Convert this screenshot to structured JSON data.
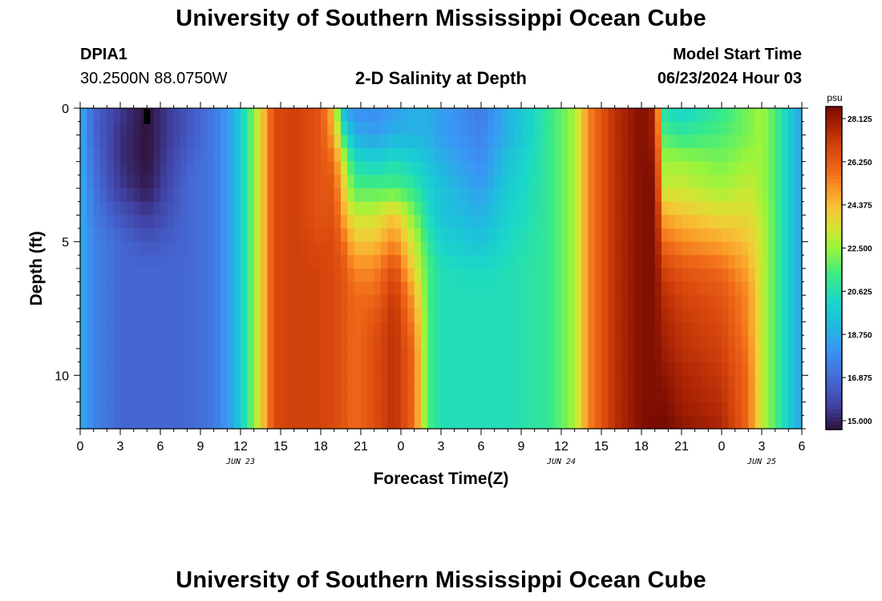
{
  "page": {
    "title": "University of Southern Mississippi Ocean Cube",
    "footer_title": "University of Southern Mississippi Ocean Cube"
  },
  "station": {
    "id": "DPIA1",
    "coords": "30.2500N  88.0750W"
  },
  "model": {
    "label": "Model Start Time",
    "start": "06/23/2024 Hour 03"
  },
  "chart_data": {
    "type": "heatmap",
    "title": "2-D Salinity at Depth",
    "xlabel": "Forecast Time(Z)",
    "ylabel": "Depth (ft)",
    "x_range_hours": [
      0,
      54
    ],
    "x_ticks": [
      0,
      3,
      6,
      9,
      12,
      15,
      18,
      21,
      24,
      27,
      30,
      33,
      36,
      39,
      42,
      45,
      48,
      51,
      54
    ],
    "x_tick_labels": [
      "0",
      "3",
      "6",
      "9",
      "12",
      "15",
      "18",
      "21",
      "0",
      "3",
      "6",
      "9",
      "12",
      "15",
      "18",
      "21",
      "0",
      "3",
      "6"
    ],
    "date_labels": [
      {
        "text": "JUN 23",
        "hour": 12
      },
      {
        "text": "JUN 24",
        "hour": 36
      },
      {
        "text": "JUN 25",
        "hour": 51
      }
    ],
    "y_range_ft": [
      0,
      12
    ],
    "y_ticks": [
      0,
      5,
      10
    ],
    "y_tick_labels": [
      "0",
      "5",
      "10"
    ],
    "colorbar": {
      "unit": "psu",
      "min": 15.0,
      "max": 28.125,
      "tick_labels": [
        "28.125",
        "26.250",
        "24.375",
        "22.500",
        "20.625",
        "18.750",
        "16.875",
        "15.000"
      ]
    },
    "depth_profile_ft": [
      0,
      1,
      2,
      3,
      4,
      5,
      6,
      7,
      8,
      9,
      10,
      11,
      12
    ],
    "salinity_keyframes": [
      {
        "hour": 0,
        "psu": [
          19.0,
          19.0,
          19.0,
          19.0,
          19.0,
          19.0,
          19.0,
          19.0,
          19.0,
          19.0,
          19.0,
          19.0,
          19.0
        ]
      },
      {
        "hour": 1,
        "psu": [
          17.0,
          17.0,
          17.2,
          17.4,
          17.6,
          17.8,
          17.8,
          17.8,
          17.8,
          17.8,
          17.8,
          17.8,
          17.8
        ]
      },
      {
        "hour": 3,
        "psu": [
          15.8,
          15.6,
          15.6,
          15.8,
          16.5,
          17.0,
          17.0,
          17.0,
          17.0,
          17.0,
          17.0,
          17.0,
          17.0
        ]
      },
      {
        "hour": 5,
        "psu": [
          15.0,
          15.0,
          15.0,
          15.2,
          15.8,
          16.5,
          17.0,
          17.0,
          17.0,
          17.0,
          17.0,
          17.0,
          17.0
        ]
      },
      {
        "hour": 8,
        "psu": [
          16.5,
          16.5,
          16.8,
          17.0,
          17.0,
          17.0,
          17.0,
          17.0,
          17.0,
          17.0,
          17.0,
          17.0,
          17.0
        ]
      },
      {
        "hour": 10,
        "psu": [
          17.5,
          17.5,
          17.5,
          17.5,
          17.5,
          17.5,
          17.5,
          17.5,
          17.5,
          17.5,
          17.5,
          17.5,
          17.5
        ]
      },
      {
        "hour": 11.5,
        "psu": [
          18.8,
          18.8,
          18.8,
          18.8,
          18.8,
          18.8,
          18.8,
          18.8,
          18.8,
          18.8,
          18.8,
          18.8,
          18.8
        ]
      },
      {
        "hour": 12.5,
        "psu": [
          21.0,
          21.0,
          21.0,
          21.0,
          21.0,
          21.0,
          21.0,
          21.0,
          21.0,
          21.0,
          21.0,
          21.0,
          21.0
        ]
      },
      {
        "hour": 13.5,
        "psu": [
          23.5,
          23.5,
          23.5,
          23.5,
          23.5,
          23.5,
          23.5,
          23.5,
          23.5,
          23.5,
          23.5,
          23.5,
          23.5
        ]
      },
      {
        "hour": 14.5,
        "psu": [
          26.3,
          26.3,
          26.3,
          26.3,
          26.3,
          26.3,
          26.3,
          26.3,
          26.3,
          26.3,
          26.3,
          26.3,
          26.3
        ]
      },
      {
        "hour": 16,
        "psu": [
          26.6,
          26.6,
          26.6,
          26.6,
          26.6,
          26.6,
          26.6,
          26.6,
          26.6,
          26.6,
          26.6,
          26.6,
          26.6
        ]
      },
      {
        "hour": 18,
        "psu": [
          26.0,
          26.0,
          26.0,
          26.0,
          26.0,
          26.3,
          26.5,
          26.5,
          26.5,
          26.5,
          26.5,
          26.5,
          26.5
        ]
      },
      {
        "hour": 19,
        "psu": [
          24.0,
          24.5,
          25.5,
          26.0,
          26.2,
          26.3,
          26.3,
          26.3,
          26.3,
          26.3,
          26.3,
          26.3,
          26.3
        ]
      },
      {
        "hour": 19.7,
        "psu": [
          19.0,
          21.0,
          23.0,
          23.8,
          24.5,
          25.5,
          26.0,
          26.0,
          26.0,
          26.0,
          26.0,
          26.0,
          26.0
        ]
      },
      {
        "hour": 20.5,
        "psu": [
          18.0,
          19.0,
          20.5,
          21.5,
          23.0,
          24.0,
          25.0,
          25.5,
          25.5,
          25.5,
          25.5,
          25.5,
          25.5
        ]
      },
      {
        "hour": 22,
        "psu": [
          18.0,
          18.5,
          20.0,
          21.5,
          23.0,
          24.0,
          25.0,
          25.5,
          26.0,
          26.2,
          26.2,
          26.2,
          26.2
        ]
      },
      {
        "hour": 23.5,
        "psu": [
          18.5,
          19.0,
          20.5,
          21.5,
          24.0,
          25.0,
          26.3,
          26.8,
          27.0,
          27.0,
          27.0,
          27.0,
          27.0
        ]
      },
      {
        "hour": 25,
        "psu": [
          19.0,
          19.0,
          20.0,
          21.0,
          22.0,
          23.0,
          23.5,
          24.5,
          25.0,
          25.5,
          25.5,
          25.5,
          25.5
        ]
      },
      {
        "hour": 26,
        "psu": [
          19.0,
          19.0,
          19.5,
          20.0,
          20.5,
          21.0,
          21.5,
          21.5,
          21.5,
          21.5,
          21.5,
          21.5,
          21.5
        ]
      },
      {
        "hour": 27,
        "psu": [
          18.5,
          18.5,
          19.0,
          19.5,
          19.5,
          20.0,
          20.5,
          20.5,
          20.5,
          20.5,
          20.5,
          20.5,
          20.5
        ]
      },
      {
        "hour": 30,
        "psu": [
          17.5,
          17.8,
          18.0,
          18.5,
          19.0,
          19.5,
          20.3,
          20.5,
          20.5,
          20.5,
          20.5,
          20.5,
          20.5
        ]
      },
      {
        "hour": 32,
        "psu": [
          19.0,
          19.0,
          19.5,
          19.8,
          20.0,
          20.3,
          20.5,
          20.5,
          20.5,
          20.5,
          20.5,
          20.5,
          20.5
        ]
      },
      {
        "hour": 35,
        "psu": [
          21.0,
          21.0,
          21.0,
          21.0,
          21.0,
          21.0,
          21.0,
          21.0,
          21.0,
          21.0,
          21.0,
          21.0,
          21.0
        ]
      },
      {
        "hour": 37,
        "psu": [
          22.5,
          22.5,
          22.5,
          22.5,
          22.5,
          22.5,
          22.5,
          22.5,
          22.5,
          22.5,
          22.5,
          22.5,
          22.5
        ]
      },
      {
        "hour": 38,
        "psu": [
          25.0,
          25.0,
          25.0,
          25.0,
          25.0,
          25.0,
          25.0,
          25.0,
          25.0,
          25.0,
          25.0,
          25.0,
          25.0
        ]
      },
      {
        "hour": 40,
        "psu": [
          27.0,
          27.0,
          27.0,
          27.0,
          27.0,
          27.0,
          27.0,
          27.0,
          27.0,
          27.0,
          27.0,
          27.0,
          27.0
        ]
      },
      {
        "hour": 42,
        "psu": [
          28.0,
          28.0,
          28.0,
          28.0,
          28.0,
          28.0,
          28.0,
          28.0,
          28.0,
          28.0,
          28.0,
          28.0,
          28.0
        ]
      },
      {
        "hour": 43,
        "psu": [
          27.5,
          27.5,
          27.8,
          28.0,
          28.0,
          28.0,
          28.0,
          28.0,
          28.0,
          28.0,
          28.0,
          28.0,
          28.2
        ]
      },
      {
        "hour": 43.7,
        "psu": [
          20.5,
          21.5,
          22.5,
          23.0,
          24.5,
          25.5,
          26.5,
          27.0,
          27.3,
          27.5,
          27.8,
          28.0,
          28.2
        ]
      },
      {
        "hour": 45,
        "psu": [
          20.0,
          21.0,
          22.5,
          23.0,
          24.0,
          25.0,
          26.0,
          26.5,
          26.8,
          27.0,
          27.3,
          27.5,
          27.8
        ]
      },
      {
        "hour": 48,
        "psu": [
          21.0,
          21.5,
          22.0,
          22.5,
          23.5,
          24.5,
          25.5,
          26.0,
          26.3,
          26.5,
          26.8,
          27.0,
          27.3
        ]
      },
      {
        "hour": 50,
        "psu": [
          22.0,
          22.0,
          22.5,
          23.0,
          23.5,
          24.0,
          24.5,
          25.0,
          25.0,
          25.3,
          25.5,
          25.5,
          25.5
        ]
      },
      {
        "hour": 51,
        "psu": [
          22.5,
          22.5,
          22.5,
          22.5,
          22.8,
          23.0,
          23.0,
          23.0,
          23.0,
          23.0,
          23.0,
          23.0,
          23.0
        ]
      },
      {
        "hour": 52,
        "psu": [
          21.5,
          21.5,
          21.5,
          21.5,
          21.5,
          21.5,
          21.5,
          21.5,
          21.5,
          21.5,
          21.5,
          21.5,
          21.5
        ]
      },
      {
        "hour": 53,
        "psu": [
          20.0,
          20.0,
          20.0,
          20.0,
          20.0,
          20.0,
          20.0,
          20.0,
          20.0,
          20.0,
          20.0,
          20.0,
          20.0
        ]
      },
      {
        "hour": 54,
        "psu": [
          18.5,
          18.5,
          18.5,
          18.5,
          18.5,
          18.5,
          18.5,
          18.5,
          18.5,
          18.5,
          18.5,
          18.5,
          18.5
        ]
      }
    ],
    "marker": {
      "hour": 5,
      "depth_ft": [
        0,
        0.5
      ],
      "color": "#000000"
    }
  }
}
